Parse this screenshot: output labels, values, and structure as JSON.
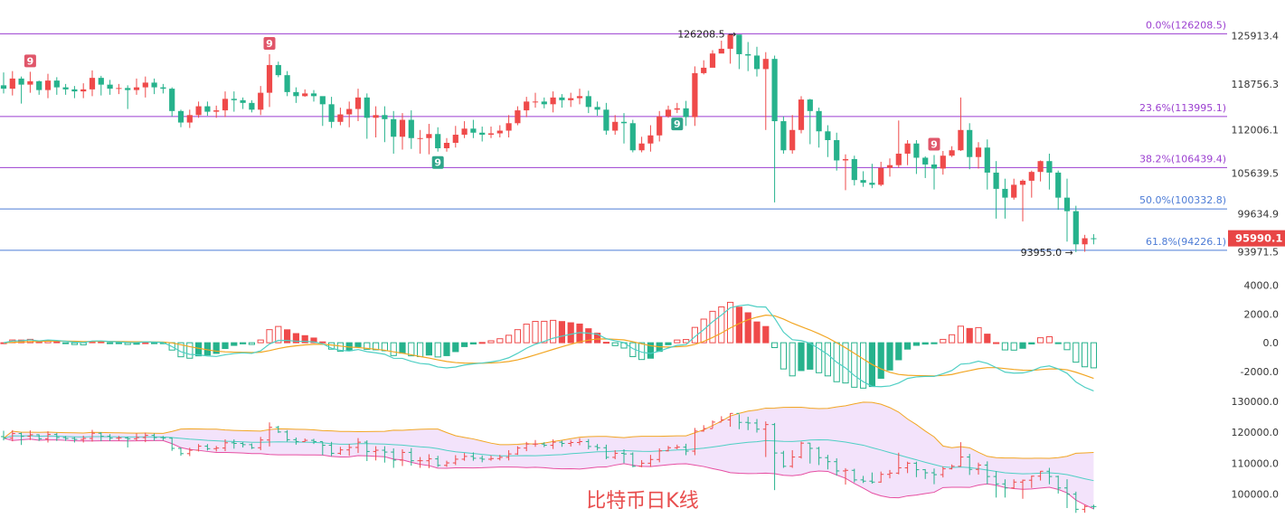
{
  "caption": "比特币日K线",
  "colors": {
    "up": "#ef4a4a",
    "down": "#26b28c",
    "fib_purple": "#9b3fd0",
    "fib_blue": "#4d7cd6",
    "macd_fast": "#4fcfc4",
    "macd_slow": "#f2a623",
    "boll_upper": "#f2a623",
    "boll_mid": "#4fcfc4",
    "boll_lower": "#e64fa2",
    "boll_fill": "#f3e3fb",
    "price_tag_bg": "#e84545",
    "axis_text": "#333333",
    "td9_red": "#e0566a",
    "td9_green": "#2fa58a"
  },
  "chart_data": [
    {
      "type": "candlestick",
      "panel": "price",
      "y_ticks": [
        125913.4,
        118756.3,
        112006.1,
        105639.5,
        99634.9,
        93971.5
      ],
      "ylim": [
        93000,
        127200
      ],
      "current_price": "95990.1",
      "fib_levels": [
        {
          "label": "0.0%(126208.5)",
          "value": 126208.5,
          "color": "purple"
        },
        {
          "label": "23.6%(113995.1)",
          "value": 113995.1,
          "color": "purple"
        },
        {
          "label": "38.2%(106439.4)",
          "value": 106439.4,
          "color": "purple"
        },
        {
          "label": "50.0%(100332.8)",
          "value": 100332.8,
          "color": "blue"
        },
        {
          "label": "61.8%(94226.1)",
          "value": 94226.1,
          "color": "blue"
        }
      ],
      "annotations": [
        {
          "text": "126208.5",
          "index": 83,
          "value": 126208.5,
          "side": "left"
        },
        {
          "text": "93955.0",
          "index": 121,
          "value": 93955.0,
          "side": "left"
        }
      ],
      "td_markers": [
        {
          "text": "9",
          "index": 3,
          "kind": "red"
        },
        {
          "text": "9",
          "index": 30,
          "kind": "red"
        },
        {
          "text": "9",
          "index": 49,
          "kind": "green"
        },
        {
          "text": "9",
          "index": 76,
          "kind": "green"
        },
        {
          "text": "9",
          "index": 105,
          "kind": "red"
        }
      ],
      "closes": [
        118100,
        119600,
        118700,
        119200,
        117900,
        119300,
        118300,
        118000,
        117700,
        118000,
        119700,
        118700,
        118100,
        118200,
        117900,
        118300,
        119000,
        118300,
        118100,
        114800,
        113100,
        114200,
        115500,
        114700,
        114900,
        116600,
        116400,
        116000,
        115000,
        117500,
        121600,
        120100,
        117600,
        117000,
        117400,
        117000,
        115800,
        113200,
        114300,
        115100,
        116800,
        113800,
        114200,
        113600,
        111000,
        113500,
        110800,
        110800,
        111400,
        109300,
        110100,
        111300,
        112200,
        111600,
        111300,
        111500,
        111900,
        113000,
        114900,
        116200,
        116200,
        115800,
        116800,
        116400,
        116700,
        117000,
        115400,
        115000,
        111900,
        113200,
        113000,
        109000,
        110000,
        111200,
        114000,
        115000,
        115200,
        113900,
        120400,
        121200,
        123300,
        124000,
        126100,
        123200,
        123000,
        121000,
        122500,
        113300,
        109000,
        112000,
        116500,
        114800,
        111800,
        110500,
        107500,
        107700,
        104600,
        104200,
        103900,
        106400,
        106800,
        108500,
        110000,
        107900,
        106900,
        106300,
        108200,
        109000,
        112000,
        108000,
        109400,
        105700,
        103300,
        102000,
        103900,
        104500,
        105800,
        107400,
        105700,
        102000,
        100000,
        95100,
        96000,
        95990
      ],
      "highs": [
        120500,
        120700,
        119900,
        120600,
        119300,
        120300,
        119800,
        118800,
        118500,
        118900,
        120800,
        120000,
        119400,
        118800,
        118600,
        119600,
        119900,
        119600,
        118800,
        118300,
        115000,
        115000,
        116200,
        116200,
        115600,
        117700,
        117700,
        116800,
        116400,
        118500,
        123200,
        122100,
        120700,
        118300,
        118000,
        117900,
        116900,
        116900,
        115300,
        116200,
        118100,
        117400,
        115500,
        115500,
        114800,
        114500,
        114900,
        112000,
        112900,
        112400,
        110800,
        112600,
        113300,
        113500,
        112500,
        112500,
        112700,
        114200,
        115500,
        116900,
        117500,
        116800,
        117700,
        117300,
        117500,
        118100,
        117800,
        116200,
        116000,
        114200,
        114500,
        113500,
        111000,
        112700,
        114800,
        115600,
        116000,
        116300,
        121400,
        122300,
        123800,
        125200,
        126200,
        125800,
        125000,
        124300,
        123500,
        123000,
        114000,
        114200,
        117000,
        116600,
        115300,
        112700,
        111600,
        108400,
        108200,
        105900,
        107000,
        107300,
        107800,
        113400,
        110500,
        110500,
        108100,
        108300,
        108900,
        109600,
        116800,
        113000,
        110200,
        110600,
        107400,
        104800,
        104800,
        104700,
        106000,
        107500,
        108500,
        106000,
        104800,
        100800,
        96500,
        96600
      ],
      "lows": [
        117400,
        117100,
        115900,
        117500,
        117200,
        116700,
        117200,
        117200,
        116700,
        116700,
        117000,
        117100,
        117200,
        117300,
        115100,
        117200,
        116800,
        117300,
        117400,
        114000,
        112400,
        112300,
        113800,
        114100,
        113800,
        113900,
        114700,
        115100,
        114600,
        114200,
        115400,
        119800,
        117000,
        116000,
        116900,
        116200,
        112600,
        112300,
        112700,
        112400,
        113300,
        110700,
        110900,
        110200,
        108500,
        109100,
        109200,
        108500,
        108400,
        108800,
        108800,
        109400,
        110800,
        110800,
        110300,
        110800,
        110900,
        110900,
        112700,
        113900,
        115300,
        115200,
        114600,
        115300,
        115400,
        115800,
        114500,
        114100,
        111300,
        111300,
        110000,
        108700,
        108700,
        108800,
        110300,
        113800,
        114500,
        112600,
        112600,
        120200,
        121300,
        123500,
        121800,
        121000,
        120700,
        119900,
        112000,
        101300,
        108500,
        108500,
        111500,
        109900,
        109400,
        108000,
        106000,
        103100,
        103800,
        103600,
        103400,
        103700,
        105100,
        106400,
        106800,
        105500,
        104900,
        103200,
        105400,
        108000,
        108900,
        106200,
        106300,
        103200,
        98900,
        98900,
        101700,
        98500,
        102000,
        104400,
        103200,
        100200,
        95500,
        93955,
        94000,
        95100
      ]
    },
    {
      "type": "macd",
      "panel": "macd",
      "y_ticks": [
        4000.0,
        2000.0,
        0.0,
        -2000.0
      ],
      "ylim": [
        -3200,
        4600
      ]
    },
    {
      "type": "bollinger",
      "panel": "boll",
      "y_ticks": [
        130000.0,
        120000.0,
        110000.0,
        100000.0
      ],
      "ylim": [
        95500,
        133500
      ]
    }
  ]
}
